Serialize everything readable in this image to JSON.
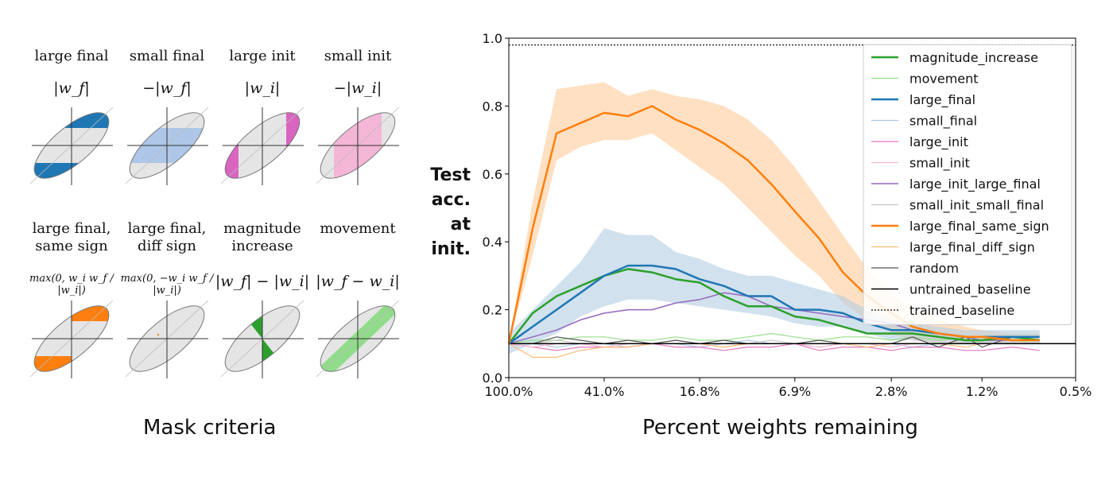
{
  "criteria_caption": "Mask criteria",
  "criteria": [
    {
      "title": "large final",
      "formula": "|w_f|",
      "fill": "#1f77b4",
      "pattern": "large"
    },
    {
      "title": "small final",
      "formula": "−|w_f|",
      "fill": "#aec7e8",
      "pattern": "small"
    },
    {
      "title": "large init",
      "formula": "|w_i|",
      "fill": "#d965c0",
      "pattern": "large_init"
    },
    {
      "title": "small init",
      "formula": "−|w_i|",
      "fill": "#f4b6d6",
      "pattern": "small_init"
    },
    {
      "title": "large final,\nsame sign",
      "formula": "max(0, w_i w_f / |w_i|)",
      "fill": "#ff7f0e",
      "pattern": "same_sign"
    },
    {
      "title": "large final,\ndiff sign",
      "formula": "max(0, −w_i w_f / |w_i|)",
      "fill": "#ff7f0e",
      "pattern": "diff_sign"
    },
    {
      "title": "magnitude\nincrease",
      "formula": "|w_f| − |w_i|",
      "fill": "#2ca02c",
      "pattern": "mag_inc"
    },
    {
      "title": "movement",
      "formula": "|w_f − w_i|",
      "fill": "#90dc8a",
      "pattern": "movement"
    }
  ],
  "chart_data": {
    "type": "line",
    "ylabel": "Test acc. at init.",
    "xlabel": "Percent weights remaining",
    "xticks": [
      "100.0%",
      "41.0%",
      "16.8%",
      "6.9%",
      "2.8%",
      "1.2%",
      "0.5%"
    ],
    "ylim": [
      0.0,
      1.0
    ],
    "yticks": [
      0.0,
      0.2,
      0.4,
      0.6,
      0.8,
      1.0
    ],
    "x": [
      100.0,
      80.0,
      64.0,
      51.2,
      41.0,
      32.8,
      26.2,
      21.0,
      16.8,
      13.4,
      10.7,
      8.6,
      6.9,
      5.5,
      4.4,
      3.5,
      2.8,
      2.3,
      1.8,
      1.4,
      1.2,
      0.9,
      0.7
    ],
    "grid": false,
    "legend_position": "top-right",
    "series": [
      {
        "name": "magnitude_increase",
        "color": "#2ca02c",
        "width": 2.5,
        "values": [
          0.1,
          0.19,
          0.24,
          0.27,
          0.3,
          0.32,
          0.31,
          0.29,
          0.28,
          0.24,
          0.21,
          0.21,
          0.18,
          0.17,
          0.15,
          0.13,
          0.13,
          0.13,
          0.12,
          0.11,
          0.11,
          0.12,
          0.11
        ]
      },
      {
        "name": "movement",
        "color": "#98df8a",
        "width": 1.2,
        "values": [
          0.1,
          0.11,
          0.11,
          0.12,
          0.12,
          0.11,
          0.11,
          0.12,
          0.11,
          0.11,
          0.12,
          0.13,
          0.12,
          0.11,
          0.12,
          0.12,
          0.11,
          0.12,
          0.11,
          0.12,
          0.12,
          0.12,
          0.12
        ]
      },
      {
        "name": "large_final",
        "color": "#1f77b4",
        "width": 2.5,
        "values": [
          0.1,
          0.15,
          0.2,
          0.25,
          0.3,
          0.33,
          0.33,
          0.32,
          0.29,
          0.27,
          0.24,
          0.24,
          0.2,
          0.2,
          0.19,
          0.16,
          0.14,
          0.14,
          0.13,
          0.12,
          0.12,
          0.12,
          0.12
        ]
      },
      {
        "name": "small_final",
        "color": "#aec7e8",
        "width": 1.2,
        "values": [
          0.1,
          0.1,
          0.09,
          0.1,
          0.1,
          0.09,
          0.1,
          0.1,
          0.09,
          0.1,
          0.11,
          0.1,
          0.1,
          0.09,
          0.1,
          0.1,
          0.1,
          0.09,
          0.1,
          0.1,
          0.1,
          0.1,
          0.1
        ]
      },
      {
        "name": "large_init",
        "color": "#e377c2",
        "width": 1.2,
        "values": [
          0.1,
          0.09,
          0.08,
          0.09,
          0.09,
          0.09,
          0.1,
          0.09,
          0.09,
          0.08,
          0.09,
          0.09,
          0.1,
          0.08,
          0.09,
          0.09,
          0.08,
          0.09,
          0.09,
          0.08,
          0.08,
          0.09,
          0.08
        ]
      },
      {
        "name": "small_init",
        "color": "#f7b6d2",
        "width": 1.2,
        "values": [
          0.1,
          0.09,
          0.1,
          0.1,
          0.09,
          0.1,
          0.1,
          0.1,
          0.1,
          0.09,
          0.1,
          0.1,
          0.1,
          0.09,
          0.1,
          0.1,
          0.09,
          0.1,
          0.1,
          0.1,
          0.1,
          0.1,
          0.1
        ]
      },
      {
        "name": "large_init_large_final",
        "color": "#9467bd",
        "width": 1.5,
        "values": [
          0.1,
          0.12,
          0.14,
          0.17,
          0.19,
          0.2,
          0.2,
          0.22,
          0.23,
          0.25,
          0.24,
          0.21,
          0.2,
          0.19,
          0.18,
          0.17,
          0.16,
          0.14,
          0.13,
          0.12,
          0.11,
          0.11,
          0.11
        ]
      },
      {
        "name": "small_init_small_final",
        "color": "#c7c7c7",
        "width": 1.2,
        "values": [
          0.1,
          0.1,
          0.11,
          0.1,
          0.1,
          0.1,
          0.1,
          0.11,
          0.1,
          0.1,
          0.1,
          0.11,
          0.1,
          0.1,
          0.1,
          0.1,
          0.1,
          0.1,
          0.1,
          0.1,
          0.1,
          0.1,
          0.1
        ]
      },
      {
        "name": "large_final_same_sign",
        "color": "#ff7f0e",
        "width": 2.5,
        "values": [
          0.1,
          0.44,
          0.72,
          0.75,
          0.78,
          0.77,
          0.8,
          0.76,
          0.73,
          0.69,
          0.64,
          0.57,
          0.49,
          0.41,
          0.31,
          0.24,
          0.19,
          0.15,
          0.13,
          0.12,
          0.12,
          0.11,
          0.11
        ]
      },
      {
        "name": "large_final_diff_sign",
        "color": "#ffbb78",
        "width": 1.2,
        "values": [
          0.1,
          0.06,
          0.06,
          0.08,
          0.09,
          0.09,
          0.1,
          0.1,
          0.1,
          0.09,
          0.1,
          0.1,
          0.1,
          0.1,
          0.1,
          0.09,
          0.1,
          0.1,
          0.1,
          0.09,
          0.1,
          0.1,
          0.1
        ]
      },
      {
        "name": "random",
        "color": "#555555",
        "width": 1.2,
        "values": [
          0.1,
          0.1,
          0.12,
          0.11,
          0.1,
          0.11,
          0.1,
          0.11,
          0.1,
          0.11,
          0.1,
          0.1,
          0.1,
          0.11,
          0.1,
          0.1,
          0.1,
          0.12,
          0.09,
          0.12,
          0.09,
          0.12,
          0.11
        ]
      },
      {
        "name": "untrained_baseline",
        "color": "#000000",
        "width": 1.5,
        "constant": 0.1,
        "values": [
          0.1,
          0.1,
          0.1,
          0.1,
          0.1,
          0.1,
          0.1,
          0.1,
          0.1,
          0.1,
          0.1,
          0.1,
          0.1,
          0.1,
          0.1,
          0.1,
          0.1,
          0.1,
          0.1,
          0.1,
          0.1,
          0.1,
          0.1
        ]
      },
      {
        "name": "trained_baseline",
        "color": "#000000",
        "width": 1.2,
        "dashed": true,
        "constant": 0.98,
        "values": [
          0.98,
          0.98,
          0.98,
          0.98,
          0.98,
          0.98,
          0.98,
          0.98,
          0.98,
          0.98,
          0.98,
          0.98,
          0.98,
          0.98,
          0.98,
          0.98,
          0.98,
          0.98,
          0.98,
          0.98,
          0.98,
          0.98,
          0.98
        ]
      }
    ],
    "bands": [
      {
        "series": "large_final_same_sign",
        "color": "#ffcc99",
        "lower": [
          0.1,
          0.36,
          0.64,
          0.68,
          0.7,
          0.7,
          0.72,
          0.67,
          0.62,
          0.57,
          0.5,
          0.43,
          0.36,
          0.3,
          0.22,
          0.17,
          0.13,
          0.11,
          0.1,
          0.1,
          0.1,
          0.1,
          0.1
        ],
        "upper": [
          0.1,
          0.52,
          0.85,
          0.86,
          0.87,
          0.83,
          0.85,
          0.83,
          0.82,
          0.8,
          0.76,
          0.7,
          0.62,
          0.52,
          0.42,
          0.32,
          0.25,
          0.2,
          0.17,
          0.15,
          0.14,
          0.13,
          0.13
        ]
      },
      {
        "series": "large_final",
        "color": "#b3cde3",
        "lower": [
          0.07,
          0.1,
          0.13,
          0.18,
          0.21,
          0.23,
          0.23,
          0.22,
          0.21,
          0.2,
          0.19,
          0.18,
          0.16,
          0.15,
          0.15,
          0.13,
          0.11,
          0.11,
          0.1,
          0.1,
          0.1,
          0.1,
          0.1
        ],
        "upper": [
          0.13,
          0.2,
          0.27,
          0.34,
          0.44,
          0.42,
          0.42,
          0.37,
          0.35,
          0.32,
          0.3,
          0.3,
          0.28,
          0.26,
          0.24,
          0.2,
          0.17,
          0.16,
          0.15,
          0.14,
          0.14,
          0.14,
          0.14
        ]
      }
    ]
  }
}
